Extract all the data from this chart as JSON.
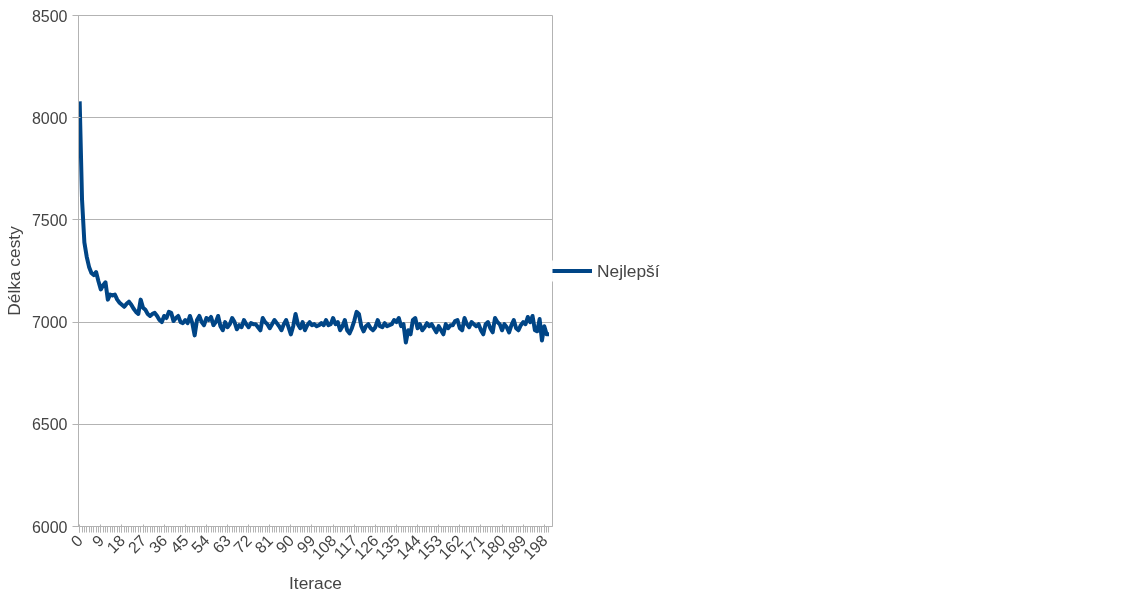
{
  "chart_data": {
    "type": "line",
    "xlabel": "Iterace",
    "ylabel": "Délka cesty",
    "x": [
      0,
      1,
      2,
      3,
      4,
      5,
      6,
      7,
      8,
      9,
      10,
      11,
      12,
      13,
      14,
      15,
      16,
      17,
      18,
      19,
      20,
      21,
      22,
      23,
      24,
      25,
      26,
      27,
      28,
      29,
      30,
      31,
      32,
      33,
      34,
      35,
      36,
      37,
      38,
      39,
      40,
      41,
      42,
      43,
      44,
      45,
      46,
      47,
      48,
      49,
      50,
      51,
      52,
      53,
      54,
      55,
      56,
      57,
      58,
      59,
      60,
      61,
      62,
      63,
      64,
      65,
      66,
      67,
      68,
      69,
      70,
      71,
      72,
      73,
      74,
      75,
      76,
      77,
      78,
      79,
      80,
      81,
      82,
      83,
      84,
      85,
      86,
      87,
      88,
      89,
      90,
      91,
      92,
      93,
      94,
      95,
      96,
      97,
      98,
      99,
      100,
      101,
      102,
      103,
      104,
      105,
      106,
      107,
      108,
      109,
      110,
      111,
      112,
      113,
      114,
      115,
      116,
      117,
      118,
      119,
      120,
      121,
      122,
      123,
      124,
      125,
      126,
      127,
      128,
      129,
      130,
      131,
      132,
      133,
      134,
      135,
      136,
      137,
      138,
      139,
      140,
      141,
      142,
      143,
      144,
      145,
      146,
      147,
      148,
      149,
      150,
      151,
      152,
      153,
      154,
      155,
      156,
      157,
      158,
      159,
      160,
      161,
      162,
      163,
      164,
      165,
      166,
      167,
      168,
      169,
      170,
      171,
      172,
      173,
      174,
      175,
      176,
      177,
      178,
      179,
      180,
      181,
      182,
      183,
      184,
      185,
      186,
      187,
      188,
      189,
      190,
      191,
      192,
      193,
      194,
      195,
      196,
      197,
      198,
      199,
      200
    ],
    "series": [
      {
        "name": "Nejlepší",
        "color": "#004586",
        "values": [
          8080,
          7600,
          7390,
          7320,
          7270,
          7240,
          7230,
          7245,
          7200,
          7160,
          7180,
          7195,
          7110,
          7135,
          7130,
          7135,
          7110,
          7095,
          7085,
          7075,
          7090,
          7100,
          7085,
          7065,
          7050,
          7040,
          7110,
          7070,
          7060,
          7040,
          7030,
          7040,
          7045,
          7030,
          7010,
          7000,
          7030,
          7020,
          7050,
          7045,
          7005,
          7020,
          7030,
          7000,
          6995,
          7010,
          6995,
          7030,
          6995,
          6935,
          7010,
          7030,
          7000,
          6985,
          7020,
          7010,
          7025,
          6985,
          7000,
          7030,
          6980,
          6960,
          7000,
          6975,
          6990,
          7020,
          7000,
          6965,
          6985,
          6975,
          7010,
          6990,
          6975,
          6995,
          6990,
          6990,
          6975,
          6960,
          7020,
          7000,
          6990,
          6970,
          6990,
          7010,
          6995,
          6980,
          6960,
          6990,
          7010,
          6975,
          6940,
          6980,
          7040,
          6990,
          6970,
          7000,
          6960,
          6985,
          7000,
          6985,
          6990,
          6980,
          6985,
          6995,
          6985,
          7010,
          6985,
          6990,
          7020,
          6990,
          7000,
          6960,
          6980,
          7010,
          6960,
          6945,
          6970,
          7005,
          7050,
          7040,
          6980,
          6955,
          6980,
          6990,
          6970,
          6960,
          6975,
          7010,
          6980,
          6975,
          6995,
          6980,
          6985,
          6990,
          7010,
          7000,
          7020,
          6980,
          6990,
          6900,
          6960,
          6940,
          7010,
          7020,
          6970,
          6990,
          6960,
          6975,
          6995,
          6980,
          6990,
          6970,
          6950,
          6980,
          6960,
          6940,
          6990,
          6970,
          6985,
          6985,
          7005,
          7010,
          6970,
          6960,
          7020,
          6990,
          6975,
          7000,
          6990,
          6980,
          6990,
          6960,
          6940,
          6990,
          7000,
          6970,
          6950,
          7020,
          7000,
          6990,
          6960,
          6990,
          6975,
          6950,
          6985,
          7010,
          6970,
          6960,
          6985,
          7000,
          6990,
          7025,
          7000,
          7030,
          6960,
          6955,
          7015,
          6910,
          6980,
          6940,
          6940
        ]
      }
    ],
    "xlim": [
      -0.5,
      201.5
    ],
    "ylim": [
      6000,
      8500
    ],
    "xticks": [
      0,
      9,
      18,
      27,
      36,
      45,
      54,
      63,
      72,
      81,
      90,
      99,
      108,
      117,
      126,
      135,
      144,
      153,
      162,
      171,
      180,
      189,
      198
    ],
    "yticks": [
      6000,
      6500,
      7000,
      7500,
      8000,
      8500
    ],
    "grid": "y",
    "legend": "right",
    "line_style": "solid",
    "marker": "none"
  }
}
